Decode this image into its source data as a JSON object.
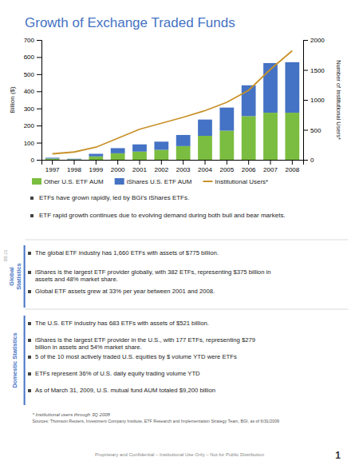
{
  "chart_data": {
    "type": "bar",
    "title": "Growth of Exchange Traded Funds",
    "categories": [
      "1997",
      "1998",
      "1999",
      "2000",
      "2001",
      "2002",
      "2003",
      "2004",
      "2005",
      "2006",
      "2007",
      "2008"
    ],
    "series": [
      {
        "name": "Other U.S. ETF AUM",
        "color": "#7BBD40",
        "type": "bar",
        "values": [
          7,
          3,
          20,
          38,
          48,
          58,
          80,
          140,
          170,
          255,
          275,
          275
        ]
      },
      {
        "name": "iShares U.S. ETF AUM",
        "color": "#4472C4",
        "type": "bar",
        "values": [
          5,
          3,
          15,
          30,
          42,
          48,
          65,
          95,
          135,
          180,
          290,
          295
        ]
      },
      {
        "name": "Institutional Users*",
        "color": "#C8922A",
        "type": "line",
        "axis": "y2",
        "values": [
          100,
          130,
          210,
          360,
          510,
          610,
          710,
          820,
          960,
          1160,
          1510,
          1820
        ]
      }
    ],
    "stacked": true,
    "ylabel": "Billion ($)",
    "y2label": "Number of Institutional Users*",
    "ylim": [
      0,
      700
    ],
    "yticks": [
      0,
      100,
      200,
      300,
      400,
      500,
      600,
      700
    ],
    "y2lim": [
      0,
      2000
    ],
    "y2ticks": [
      0,
      500,
      1000,
      1500,
      2000
    ],
    "grid": false,
    "legend": "bottom"
  },
  "bullets": [
    "ETFs have grown rapidly, led by BGI’s iShares ETFs.",
    "ETF rapid growth continues due to evolving demand during both bull and bear markets."
  ],
  "sections": [
    {
      "label": "Global\nStatistics",
      "color": "#4472C4",
      "bullets": [
        "The global ETF industry has 1,660 ETFs with assets of $775 billion.",
        "iShares is the largest ETF provider globally, with 382 ETFs, representing $375 billion in\nassets and 48% market share.",
        "Global ETF assets grew at 33% per year between 2001 and 2008."
      ]
    },
    {
      "label": "Domestic Statistics",
      "color": "#4472C4",
      "bullets": [
        "The U.S. ETF industry has 683 ETFs with assets of $521 billion.",
        "iShares is the largest ETF provider in the U.S., with 177 ETFs, representing $279\nbillion in assets and 54% market share.",
        "5 of the 10 most actively traded U.S. equities by $ volume YTD were ETFs",
        "ETFs represent 36% of U.S. daily equity trading volume YTD",
        "As of March 31, 2009, U.S. mutual fund AUM totaled $9,200 billion"
      ]
    }
  ],
  "footnote": "* Institutional users through 3Q 2008",
  "sources": "Sources: Thomson Reuters, Investment Company Institute, ETF Research and Implementation Strategy Team, BGI, as of 6/31/2009",
  "footer": "Proprietary and Confidential – Institutional Use Only – Not for Public Distribution",
  "page_number": "1",
  "slide_id": "BB 23"
}
